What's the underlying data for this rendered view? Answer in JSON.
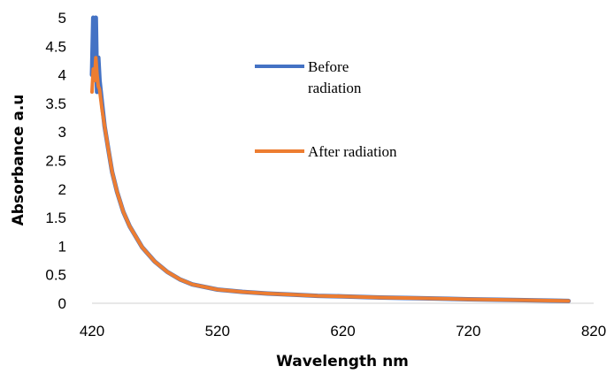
{
  "chart_data": {
    "type": "line",
    "title": "",
    "xlabel": "Wavelength nm",
    "ylabel": "Absorbance a.u",
    "xlim": [
      420,
      820
    ],
    "ylim": [
      0,
      5
    ],
    "x_ticks": [
      "420",
      "520",
      "620",
      "720",
      "820"
    ],
    "y_ticks": [
      "0",
      "0.5",
      "1",
      "1.5",
      "2",
      "2.5",
      "3",
      "3.5",
      "4",
      "4.5",
      "5"
    ],
    "grid": false,
    "legend_position": "top-right",
    "series": [
      {
        "name": "Before radiation",
        "color": "#4472C4",
        "x": [
          420,
          421,
          422,
          423,
          424,
          425,
          426,
          428,
          430,
          433,
          436,
          440,
          445,
          450,
          460,
          470,
          480,
          490,
          500,
          520,
          540,
          560,
          580,
          600,
          620,
          650,
          680,
          720,
          760,
          800
        ],
        "y": [
          4.0,
          5.0,
          4.2,
          5.0,
          3.7,
          4.3,
          3.9,
          3.5,
          3.1,
          2.7,
          2.3,
          1.95,
          1.6,
          1.35,
          0.98,
          0.73,
          0.55,
          0.42,
          0.33,
          0.24,
          0.2,
          0.17,
          0.15,
          0.13,
          0.12,
          0.1,
          0.09,
          0.07,
          0.055,
          0.04
        ]
      },
      {
        "name": "After radiation",
        "color": "#ED7D31",
        "x": [
          420,
          421,
          422,
          423,
          424,
          425,
          426,
          428,
          430,
          433,
          436,
          440,
          445,
          450,
          460,
          470,
          480,
          490,
          500,
          520,
          540,
          560,
          580,
          600,
          620,
          650,
          680,
          720,
          760,
          800
        ],
        "y": [
          3.7,
          4.1,
          3.9,
          4.3,
          4.0,
          3.8,
          3.75,
          3.4,
          3.1,
          2.7,
          2.3,
          1.95,
          1.6,
          1.35,
          0.98,
          0.73,
          0.55,
          0.42,
          0.33,
          0.24,
          0.2,
          0.17,
          0.15,
          0.13,
          0.12,
          0.1,
          0.09,
          0.07,
          0.055,
          0.04
        ]
      }
    ]
  }
}
